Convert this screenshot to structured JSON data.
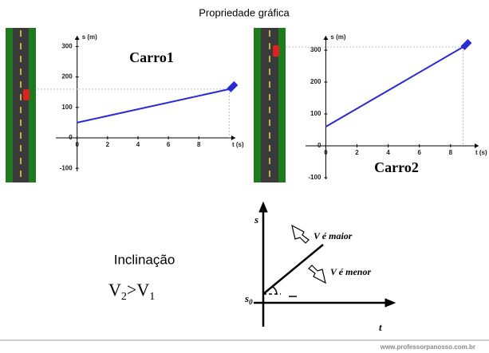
{
  "title": "Propriedade gráfica",
  "chart_data": [
    {
      "type": "line",
      "title": "Carro1",
      "x_label": "t (s)",
      "y_label": "s (m)",
      "x": [
        0,
        10
      ],
      "values": [
        50,
        160
      ],
      "color": "#2b2bd6",
      "xlim": [
        -1.4,
        10.4
      ],
      "ylim": [
        -110,
        335
      ],
      "xticks": [
        0,
        2,
        4,
        6,
        8
      ],
      "yticks": [
        -100,
        0,
        100,
        200,
        300
      ]
    },
    {
      "type": "line",
      "title": "Carro2",
      "x_label": "t (s)",
      "y_label": "s (m)",
      "x": [
        0,
        8.8
      ],
      "values": [
        60,
        310
      ],
      "color": "#2b2bd6",
      "xlim": [
        -1.3,
        9.8
      ],
      "ylim": [
        -105,
        345
      ],
      "xticks": [
        0,
        2,
        4,
        6,
        8
      ],
      "yticks": [
        -100,
        0,
        100,
        200,
        300
      ]
    }
  ],
  "left_text": {
    "label": "Inclinação",
    "inequality": {
      "left": "V",
      "left_sub": "2",
      "op": ">",
      "right": "V",
      "right_sub": "1"
    }
  },
  "diagram": {
    "y_axis": "s",
    "x_axis": "t",
    "origin": {
      "symbol": "s",
      "sub": "0"
    },
    "upper_arrow": "V é maior",
    "lower_arrow": "V é menor"
  },
  "footer": "www.professorpanosso.com.br"
}
